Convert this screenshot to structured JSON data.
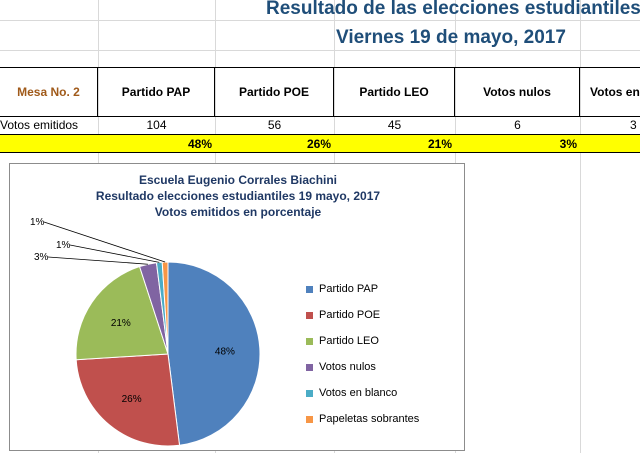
{
  "sheet": {
    "title": "Resultado de las elecciones estudiantiles",
    "date": "Viernes 19 de mayo, 2017",
    "headers": [
      "Mesa No. 2",
      "Partido PAP",
      "Partido POE",
      "Partido LEO",
      "Votos nulos",
      "Votos en"
    ],
    "row_label": "Votos emitidos",
    "votes": [
      "104",
      "56",
      "45",
      "6",
      "3"
    ],
    "percents": [
      "48%",
      "26%",
      "21%",
      "3%"
    ]
  },
  "chart_data": {
    "type": "pie",
    "title_lines": [
      "Escuela Eugenio Corrales Biachini",
      "Resultado elecciones estudiantiles 19 mayo, 2017",
      "Votos emitidos en porcentaje"
    ],
    "categories": [
      "Partido PAP",
      "Partido POE",
      "Partido LEO",
      "Votos nulos",
      "Votos en blanco",
      "Papeletas sobrantes"
    ],
    "values": [
      48,
      26,
      21,
      3,
      1,
      1
    ],
    "labels": [
      "48%",
      "26%",
      "21%",
      "3%",
      "1%",
      "1%"
    ],
    "colors": [
      "#4f81bd",
      "#c0504d",
      "#9bbb59",
      "#8064a2",
      "#4bacc6",
      "#f79646"
    ],
    "legend_position": "right"
  }
}
